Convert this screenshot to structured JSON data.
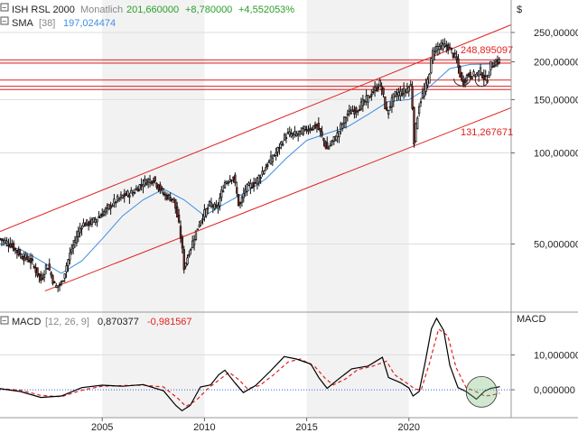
{
  "header": {
    "instrument": "ISH RSL 2000",
    "period": "Monatlich",
    "last": "201,660000",
    "change": "+8,780000",
    "change_pct": "+4,552053%",
    "sma_label": "SMA",
    "sma_param": "[38]",
    "sma_value": "197,024474"
  },
  "price_axis": {
    "currency_label": "$",
    "ticks": [
      "250,000000",
      "200,000000",
      "150,000000",
      "100,000000",
      "50,000000"
    ],
    "tick_values": [
      250,
      200,
      150,
      100,
      50
    ],
    "scale": "log",
    "ylim": [
      30,
      320
    ]
  },
  "macd_header": {
    "label": "MACD",
    "params": "[12, 26, 9]",
    "macd_value": "0,870377",
    "signal_value": "-0,981567"
  },
  "macd_axis": {
    "title": "MACD",
    "ticks": [
      "10,000000",
      "0,000000"
    ],
    "tick_values": [
      10,
      0
    ],
    "ylim": [
      -8,
      22
    ]
  },
  "x_axis": {
    "ticks": [
      "2005",
      "2010",
      "2015",
      "2020"
    ],
    "tick_years": [
      2005,
      2010,
      2015,
      2020
    ],
    "xlim": [
      2000.0,
      2025.0
    ]
  },
  "annotations": {
    "upper_channel_label": "248,895097",
    "lower_channel_label": "131,267671"
  },
  "colors": {
    "candle": "#111111",
    "up_fill": "#ffffff",
    "down_fill": "#c0302a",
    "sma": "#3f8ee0",
    "channel": "#e02020",
    "macd": "#000000",
    "signal": "#e02020",
    "zero": "#3060e0",
    "header_green": "#2a9d2a",
    "header_gray": "#888888"
  },
  "chart_data": {
    "type": "line",
    "title": "ISH RSL 2000",
    "period": "Monatlich",
    "x_unit": "year",
    "price_series": [
      {
        "name": "ISH RSL 2000",
        "points": [
          [
            2000.0,
            52
          ],
          [
            2000.5,
            50
          ],
          [
            2001.0,
            46
          ],
          [
            2001.5,
            44
          ],
          [
            2002.0,
            38
          ],
          [
            2002.3,
            43
          ],
          [
            2002.7,
            36
          ],
          [
            2003.0,
            37
          ],
          [
            2003.5,
            48
          ],
          [
            2004.0,
            58
          ],
          [
            2004.5,
            59
          ],
          [
            2005.0,
            63
          ],
          [
            2005.5,
            68
          ],
          [
            2006.0,
            72
          ],
          [
            2006.5,
            74
          ],
          [
            2007.0,
            80
          ],
          [
            2007.5,
            82
          ],
          [
            2008.0,
            73
          ],
          [
            2008.5,
            70
          ],
          [
            2008.8,
            55
          ],
          [
            2009.0,
            42
          ],
          [
            2009.3,
            48
          ],
          [
            2009.8,
            60
          ],
          [
            2010.3,
            68
          ],
          [
            2010.6,
            65
          ],
          [
            2011.0,
            80
          ],
          [
            2011.4,
            84
          ],
          [
            2011.7,
            66
          ],
          [
            2012.0,
            76
          ],
          [
            2012.5,
            80
          ],
          [
            2013.0,
            90
          ],
          [
            2013.5,
            100
          ],
          [
            2014.0,
            115
          ],
          [
            2014.5,
            115
          ],
          [
            2015.0,
            120
          ],
          [
            2015.5,
            123
          ],
          [
            2016.0,
            103
          ],
          [
            2016.5,
            115
          ],
          [
            2017.0,
            135
          ],
          [
            2017.5,
            140
          ],
          [
            2018.0,
            152
          ],
          [
            2018.6,
            170
          ],
          [
            2018.9,
            135
          ],
          [
            2019.3,
            155
          ],
          [
            2019.8,
            160
          ],
          [
            2020.1,
            168
          ],
          [
            2020.25,
            110
          ],
          [
            2020.5,
            145
          ],
          [
            2020.9,
            170
          ],
          [
            2021.2,
            220
          ],
          [
            2021.5,
            225
          ],
          [
            2021.9,
            225
          ],
          [
            2022.3,
            205
          ],
          [
            2022.6,
            170
          ],
          [
            2022.9,
            182
          ],
          [
            2023.2,
            180
          ],
          [
            2023.5,
            186
          ],
          [
            2023.8,
            172
          ],
          [
            2024.0,
            195
          ],
          [
            2024.3,
            200
          ],
          [
            2024.45,
            201.66
          ]
        ]
      },
      {
        "name": "SMA [38]",
        "points": [
          [
            2000.0,
            50
          ],
          [
            2001.0,
            48
          ],
          [
            2002.0,
            44
          ],
          [
            2003.0,
            40
          ],
          [
            2004.0,
            44
          ],
          [
            2005.0,
            52
          ],
          [
            2006.0,
            62
          ],
          [
            2007.0,
            70
          ],
          [
            2008.0,
            76
          ],
          [
            2009.0,
            70
          ],
          [
            2010.0,
            62
          ],
          [
            2011.0,
            68
          ],
          [
            2012.0,
            74
          ],
          [
            2013.0,
            82
          ],
          [
            2014.0,
            96
          ],
          [
            2015.0,
            110
          ],
          [
            2016.0,
            116
          ],
          [
            2017.0,
            122
          ],
          [
            2018.0,
            134
          ],
          [
            2019.0,
            148
          ],
          [
            2020.0,
            150
          ],
          [
            2021.0,
            165
          ],
          [
            2022.0,
            190
          ],
          [
            2023.0,
            196
          ],
          [
            2024.45,
            197.02
          ]
        ]
      }
    ],
    "channel_lines": [
      {
        "name": "upper",
        "from": [
          2000.0,
          55
        ],
        "to": [
          2025.0,
          265
        ]
      },
      {
        "name": "lower",
        "from": [
          2002.2,
          35
        ],
        "to": [
          2025.0,
          141
        ]
      }
    ],
    "horizontal_lines": [
      {
        "value": 203
      },
      {
        "value": 198
      },
      {
        "value": 174
      },
      {
        "value": 166
      },
      {
        "value": 162
      }
    ],
    "macd_series": [
      {
        "name": "MACD",
        "points": [
          [
            2000.0,
            0.3
          ],
          [
            2001.0,
            -0.5
          ],
          [
            2002.0,
            -2.2
          ],
          [
            2003.0,
            -1.8
          ],
          [
            2004.0,
            0.6
          ],
          [
            2005.0,
            1.3
          ],
          [
            2006.0,
            1.0
          ],
          [
            2007.0,
            1.5
          ],
          [
            2008.0,
            -0.3
          ],
          [
            2008.6,
            -4.5
          ],
          [
            2008.9,
            -6.0
          ],
          [
            2009.3,
            -4.5
          ],
          [
            2009.8,
            0.8
          ],
          [
            2010.3,
            1.4
          ],
          [
            2010.7,
            4.3
          ],
          [
            2011.0,
            5.6
          ],
          [
            2011.5,
            1.9
          ],
          [
            2011.9,
            -0.8
          ],
          [
            2012.5,
            1.2
          ],
          [
            2013.2,
            5.2
          ],
          [
            2013.9,
            9.5
          ],
          [
            2014.5,
            8.8
          ],
          [
            2015.2,
            7.4
          ],
          [
            2015.6,
            3.4
          ],
          [
            2016.0,
            0.4
          ],
          [
            2016.5,
            2.8
          ],
          [
            2017.2,
            6.0
          ],
          [
            2018.0,
            6.8
          ],
          [
            2018.7,
            9.3
          ],
          [
            2019.0,
            3.5
          ],
          [
            2019.6,
            2.0
          ],
          [
            2020.0,
            0.5
          ],
          [
            2020.2,
            -1.8
          ],
          [
            2020.5,
            -0.5
          ],
          [
            2020.8,
            8.0
          ],
          [
            2021.1,
            17.5
          ],
          [
            2021.35,
            20.5
          ],
          [
            2021.7,
            17.0
          ],
          [
            2022.0,
            7.0
          ],
          [
            2022.4,
            0.6
          ],
          [
            2022.8,
            -0.5
          ],
          [
            2023.3,
            -2.7
          ],
          [
            2023.7,
            -0.4
          ],
          [
            2024.0,
            0.4
          ],
          [
            2024.45,
            0.87
          ]
        ]
      },
      {
        "name": "Signal",
        "points": [
          [
            2000.0,
            0.3
          ],
          [
            2001.0,
            -0.1
          ],
          [
            2002.0,
            -1.6
          ],
          [
            2003.0,
            -2.0
          ],
          [
            2004.0,
            -0.1
          ],
          [
            2005.0,
            1.0
          ],
          [
            2006.0,
            1.2
          ],
          [
            2007.0,
            1.3
          ],
          [
            2008.0,
            0.8
          ],
          [
            2008.7,
            -2.5
          ],
          [
            2009.1,
            -4.8
          ],
          [
            2009.6,
            -3.0
          ],
          [
            2010.2,
            0.5
          ],
          [
            2010.8,
            3.2
          ],
          [
            2011.2,
            5.0
          ],
          [
            2011.7,
            2.8
          ],
          [
            2012.1,
            0.3
          ],
          [
            2012.7,
            1.2
          ],
          [
            2013.4,
            4.4
          ],
          [
            2014.1,
            8.0
          ],
          [
            2014.7,
            8.8
          ],
          [
            2015.4,
            6.6
          ],
          [
            2015.9,
            3.3
          ],
          [
            2016.3,
            1.4
          ],
          [
            2016.9,
            3.1
          ],
          [
            2017.5,
            5.8
          ],
          [
            2018.2,
            6.7
          ],
          [
            2018.9,
            8.2
          ],
          [
            2019.3,
            4.3
          ],
          [
            2019.9,
            1.9
          ],
          [
            2020.3,
            0.2
          ],
          [
            2020.6,
            0.0
          ],
          [
            2021.0,
            7.5
          ],
          [
            2021.45,
            17.4
          ],
          [
            2021.9,
            15.5
          ],
          [
            2022.3,
            6.4
          ],
          [
            2022.8,
            0.6
          ],
          [
            2023.3,
            -0.6
          ],
          [
            2023.7,
            -1.8
          ],
          [
            2024.0,
            -1.6
          ],
          [
            2024.45,
            -0.98
          ]
        ]
      }
    ]
  }
}
